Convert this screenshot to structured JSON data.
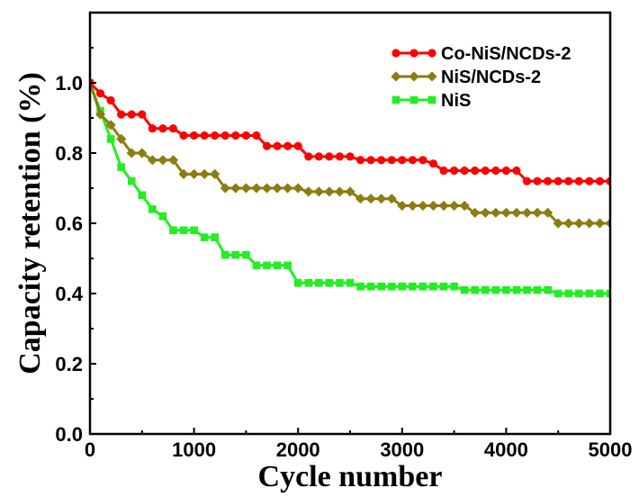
{
  "chart_data": {
    "type": "line",
    "xlabel": "Cycle number",
    "ylabel": "Capacity retention (%)",
    "xlim": [
      0,
      5000
    ],
    "ylim": [
      0,
      1.2
    ],
    "xticks": [
      0,
      1000,
      2000,
      3000,
      4000,
      5000
    ],
    "xtick_labels": [
      "0",
      "1000",
      "2000",
      "3000",
      "4000",
      "5000"
    ],
    "yticks": [
      0.0,
      0.2,
      0.4,
      0.6,
      0.8,
      1.0
    ],
    "ytick_labels": [
      "0.0",
      "0.2",
      "0.4",
      "0.6",
      "0.8",
      "1.0"
    ],
    "grid": false,
    "legend_position": "top-right",
    "series": [
      {
        "name": "Co-NiS/NCDs-2",
        "color": "#ff0000",
        "marker": "circle",
        "x": [
          0,
          100,
          200,
          300,
          400,
          500,
          600,
          700,
          800,
          900,
          1000,
          1100,
          1200,
          1300,
          1400,
          1500,
          1600,
          1700,
          1800,
          1900,
          2000,
          2100,
          2200,
          2300,
          2400,
          2500,
          2600,
          2700,
          2800,
          2900,
          3000,
          3100,
          3200,
          3300,
          3400,
          3500,
          3600,
          3700,
          3800,
          3900,
          4000,
          4100,
          4200,
          4300,
          4400,
          4500,
          4600,
          4700,
          4800,
          4900,
          5000
        ],
        "y": [
          1.0,
          0.97,
          0.95,
          0.91,
          0.91,
          0.91,
          0.87,
          0.87,
          0.87,
          0.85,
          0.85,
          0.85,
          0.85,
          0.85,
          0.85,
          0.85,
          0.85,
          0.82,
          0.82,
          0.82,
          0.82,
          0.79,
          0.79,
          0.79,
          0.79,
          0.79,
          0.78,
          0.78,
          0.78,
          0.78,
          0.78,
          0.78,
          0.78,
          0.77,
          0.75,
          0.75,
          0.75,
          0.75,
          0.75,
          0.75,
          0.75,
          0.75,
          0.72,
          0.72,
          0.72,
          0.72,
          0.72,
          0.72,
          0.72,
          0.72,
          0.72
        ]
      },
      {
        "name": "NiS/NCDs-2",
        "color": "#8b7d12",
        "marker": "diamond",
        "x": [
          0,
          100,
          200,
          300,
          400,
          500,
          600,
          700,
          800,
          900,
          1000,
          1100,
          1200,
          1300,
          1400,
          1500,
          1600,
          1700,
          1800,
          1900,
          2000,
          2100,
          2200,
          2300,
          2400,
          2500,
          2600,
          2700,
          2800,
          2900,
          3000,
          3100,
          3200,
          3300,
          3400,
          3500,
          3600,
          3700,
          3800,
          3900,
          4000,
          4100,
          4200,
          4300,
          4400,
          4500,
          4600,
          4700,
          4800,
          4900,
          5000
        ],
        "y": [
          1.0,
          0.91,
          0.88,
          0.84,
          0.8,
          0.8,
          0.78,
          0.78,
          0.78,
          0.74,
          0.74,
          0.74,
          0.74,
          0.7,
          0.7,
          0.7,
          0.7,
          0.7,
          0.7,
          0.7,
          0.7,
          0.69,
          0.69,
          0.69,
          0.69,
          0.69,
          0.67,
          0.67,
          0.67,
          0.67,
          0.65,
          0.65,
          0.65,
          0.65,
          0.65,
          0.65,
          0.65,
          0.63,
          0.63,
          0.63,
          0.63,
          0.63,
          0.63,
          0.63,
          0.63,
          0.6,
          0.6,
          0.6,
          0.6,
          0.6,
          0.6
        ]
      },
      {
        "name": "NiS",
        "color": "#22ee22",
        "marker": "square",
        "x": [
          0,
          100,
          200,
          300,
          400,
          500,
          600,
          700,
          800,
          900,
          1000,
          1100,
          1200,
          1300,
          1400,
          1500,
          1600,
          1700,
          1800,
          1900,
          2000,
          2100,
          2200,
          2300,
          2400,
          2500,
          2600,
          2700,
          2800,
          2900,
          3000,
          3100,
          3200,
          3300,
          3400,
          3500,
          3600,
          3700,
          3800,
          3900,
          4000,
          4100,
          4200,
          4300,
          4400,
          4500,
          4600,
          4700,
          4800,
          4900,
          5000
        ],
        "y": [
          1.0,
          0.92,
          0.84,
          0.76,
          0.72,
          0.68,
          0.64,
          0.62,
          0.58,
          0.58,
          0.58,
          0.56,
          0.56,
          0.51,
          0.51,
          0.51,
          0.48,
          0.48,
          0.48,
          0.48,
          0.43,
          0.43,
          0.43,
          0.43,
          0.43,
          0.43,
          0.42,
          0.42,
          0.42,
          0.42,
          0.42,
          0.42,
          0.42,
          0.42,
          0.42,
          0.42,
          0.41,
          0.41,
          0.41,
          0.41,
          0.41,
          0.41,
          0.41,
          0.41,
          0.41,
          0.4,
          0.4,
          0.4,
          0.4,
          0.4,
          0.4
        ]
      }
    ]
  }
}
